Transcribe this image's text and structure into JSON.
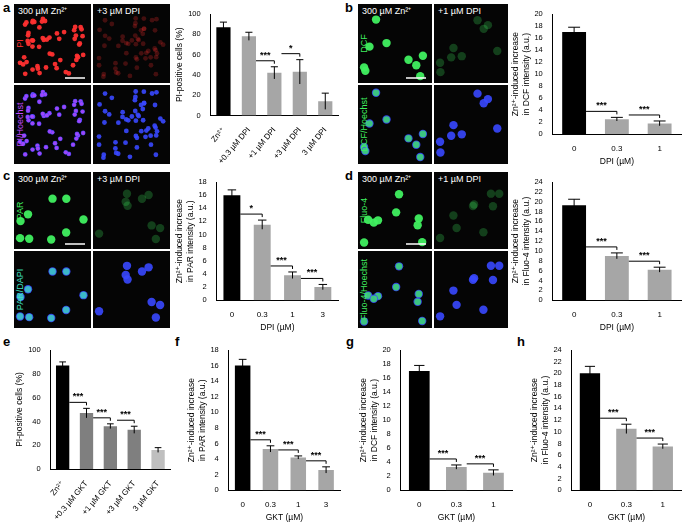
{
  "chart_data": [
    {
      "panel_label": "a",
      "type": "bar",
      "categories": [
        "Zn²⁺",
        "+0.3 µM DPI",
        "+1 µM DPI",
        "+3 µM DPI",
        "3 µM DPI"
      ],
      "values": [
        87,
        78,
        42,
        43,
        14
      ],
      "errors": [
        5,
        4,
        6,
        12,
        8
      ],
      "colors": [
        "#000000",
        "#a6a6a6",
        "#a6a6a6",
        "#a6a6a6",
        "#a6a6a6"
      ],
      "y_label": [
        "PI-positive cells (%)"
      ],
      "ylim": [
        0,
        100
      ],
      "yticks": [
        0,
        20,
        40,
        60,
        80,
        100
      ],
      "significance": [
        {
          "from": 1,
          "to": 2,
          "label": "***"
        },
        {
          "from": 2,
          "to": 3,
          "label": "*"
        }
      ]
    },
    {
      "panel_label": "b",
      "type": "bar",
      "categories": [
        "0",
        "0.3",
        "1"
      ],
      "values": [
        17,
        2.5,
        1.8
      ],
      "errors": [
        0.8,
        0.3,
        0.4
      ],
      "colors": [
        "#000000",
        "#a6a6a6",
        "#a6a6a6"
      ],
      "x_label": "DPI (µM)",
      "y_label": [
        "Zn²⁺-induced increase",
        "in DCF intensity (a.u.)"
      ],
      "ylim": [
        0,
        20
      ],
      "yticks": [
        0,
        2,
        4,
        6,
        8,
        10,
        12,
        14,
        16,
        18,
        20
      ],
      "significance": [
        {
          "from": 0,
          "to": 1,
          "label": "***"
        },
        {
          "from": 1,
          "to": 2,
          "label": "***"
        }
      ]
    },
    {
      "panel_label": "c",
      "type": "bar",
      "categories": [
        "0",
        "0.3",
        "1",
        "3"
      ],
      "values": [
        16,
        11.5,
        3.8,
        2.0
      ],
      "errors": [
        0.8,
        0.7,
        0.5,
        0.4
      ],
      "colors": [
        "#000000",
        "#a6a6a6",
        "#a6a6a6",
        "#a6a6a6"
      ],
      "x_label": "DPI (µM)",
      "y_label": [
        "Zn²⁺-induced increase",
        "in PAR intensity (a.u.)"
      ],
      "ylim": [
        0,
        18
      ],
      "yticks": [
        0,
        2,
        4,
        6,
        8,
        10,
        12,
        14,
        16,
        18
      ],
      "significance": [
        {
          "from": 0,
          "to": 1,
          "label": "*"
        },
        {
          "from": 1,
          "to": 2,
          "label": "***"
        },
        {
          "from": 2,
          "to": 3,
          "label": "***"
        }
      ]
    },
    {
      "panel_label": "d",
      "type": "bar",
      "categories": [
        "0",
        "0.3",
        "1"
      ],
      "values": [
        19.3,
        9,
        6.2
      ],
      "errors": [
        1.2,
        0.6,
        0.5
      ],
      "colors": [
        "#000000",
        "#a6a6a6",
        "#a6a6a6"
      ],
      "x_label": "DPI (µM)",
      "y_label": [
        "Zn²⁺-induced increase",
        "in Fluo-4 intensity (a.u.)"
      ],
      "ylim": [
        0,
        24
      ],
      "yticks": [
        0,
        2,
        4,
        6,
        8,
        10,
        12,
        14,
        16,
        18,
        20,
        22,
        24
      ],
      "significance": [
        {
          "from": 0,
          "to": 1,
          "label": "***"
        },
        {
          "from": 1,
          "to": 2,
          "label": "***"
        }
      ]
    },
    {
      "panel_label": "e",
      "type": "bar",
      "categories": [
        "Zn²⁺",
        "+0.3 µM GKT",
        "+1 µM GKT",
        "+3 µM GKT",
        "3 µM GKT"
      ],
      "values": [
        87,
        47,
        36,
        33,
        16
      ],
      "errors": [
        3,
        4,
        2,
        3,
        2
      ],
      "colors": [
        "#000000",
        "#7f7f7f",
        "#7f7f7f",
        "#7f7f7f",
        "#bfbfbf"
      ],
      "y_label": [
        "PI-positive cells (%)"
      ],
      "ylim": [
        0,
        100
      ],
      "yticks": [
        0,
        20,
        40,
        60,
        80,
        100
      ],
      "significance": [
        {
          "from": 0,
          "to": 1,
          "label": "***"
        },
        {
          "from": 1,
          "to": 2,
          "label": "***"
        },
        {
          "from": 2,
          "to": 3,
          "label": "***"
        }
      ]
    },
    {
      "panel_label": "f",
      "type": "bar",
      "categories": [
        "0",
        "0.3",
        "1",
        "3"
      ],
      "values": [
        16,
        5.3,
        4.2,
        2.6
      ],
      "errors": [
        0.8,
        0.4,
        0.2,
        0.4
      ],
      "colors": [
        "#000000",
        "#a6a6a6",
        "#a6a6a6",
        "#a6a6a6"
      ],
      "x_label": "GKT (µM)",
      "y_label": [
        "Zn²⁺-induced increase",
        "in PAR intensity (a.u.)"
      ],
      "ylim": [
        0,
        18
      ],
      "yticks": [
        0,
        2,
        4,
        6,
        8,
        10,
        12,
        14,
        16,
        18
      ],
      "significance": [
        {
          "from": 0,
          "to": 1,
          "label": "***"
        },
        {
          "from": 1,
          "to": 2,
          "label": "***"
        },
        {
          "from": 2,
          "to": 3,
          "label": "***"
        }
      ]
    },
    {
      "panel_label": "g",
      "type": "bar",
      "categories": [
        "0",
        "0.3",
        "1"
      ],
      "values": [
        17,
        3.3,
        2.5
      ],
      "errors": [
        0.8,
        0.3,
        0.4
      ],
      "colors": [
        "#000000",
        "#a6a6a6",
        "#a6a6a6"
      ],
      "x_label": "GKT (µM)",
      "y_label": [
        "Zn²⁺-induced increase",
        "in DCF intensity (a.u.)"
      ],
      "ylim": [
        0,
        20
      ],
      "yticks": [
        0,
        2,
        4,
        6,
        8,
        10,
        12,
        14,
        16,
        18,
        20
      ],
      "significance": [
        {
          "from": 0,
          "to": 1,
          "label": "***"
        },
        {
          "from": 1,
          "to": 2,
          "label": "***"
        }
      ]
    },
    {
      "panel_label": "h",
      "type": "bar",
      "categories": [
        "0",
        "0.3",
        "1"
      ],
      "values": [
        20,
        10.5,
        7.5
      ],
      "errors": [
        1.2,
        0.8,
        0.4
      ],
      "colors": [
        "#000000",
        "#a6a6a6",
        "#a6a6a6"
      ],
      "x_label": "GKT (µM)",
      "y_label": [
        "Zn²⁺-induced increase",
        "in Fluo-4 intensity (a.u.)"
      ],
      "ylim": [
        0,
        24
      ],
      "yticks": [
        0,
        2,
        4,
        6,
        8,
        10,
        12,
        14,
        16,
        18,
        20,
        22,
        24
      ],
      "significance": [
        {
          "from": 0,
          "to": 1,
          "label": "***"
        },
        {
          "from": 1,
          "to": 2,
          "label": "***"
        }
      ]
    }
  ],
  "micrographs": [
    {
      "columns": [
        "300 µM Zn²⁺",
        "+3 µM DPI"
      ],
      "rows": [
        {
          "label": "PI",
          "color": "#ff3030"
        },
        {
          "label": "PI/Hoechst",
          "color": "#c048ff"
        }
      ]
    },
    {
      "columns": [
        "300 µM Zn²⁺",
        "+1 µM DPI"
      ],
      "rows": [
        {
          "label": "DCF",
          "color": "#40f060"
        },
        {
          "label": "DCF/Hoechst",
          "color": "#40f060"
        }
      ]
    },
    {
      "columns": [
        "300 µM Zn²⁺",
        "+3 µM DPI"
      ],
      "rows": [
        {
          "label": "PAR",
          "color": "#40f060"
        },
        {
          "label": "PAR/DAPI",
          "color": "#40e0c0"
        }
      ]
    },
    {
      "columns": [
        "300 µM Zn²⁺",
        "+1 µM DPI"
      ],
      "rows": [
        {
          "label": "Fluo-4",
          "color": "#40f060"
        },
        {
          "label": "Fluo-4/Hoechst",
          "color": "#40f060"
        }
      ]
    }
  ]
}
